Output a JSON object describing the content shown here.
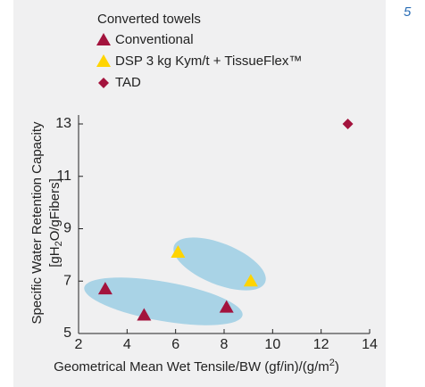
{
  "chart_data": {
    "type": "scatter",
    "figure_number": "5",
    "legend_title": "Converted towels",
    "ylabel_parts": [
      "Specific Water Retention Capacity",
      "[gH",
      "2",
      "O/gFibers]"
    ],
    "xlabel_parts": [
      "Geometrical Mean Wet Tensile/BW (gf/in)/(g/m",
      "2",
      ")"
    ],
    "series": [
      {
        "name": "Conventional",
        "color": "#a3133d",
        "marker": "triangle",
        "x": [
          3.1,
          4.7,
          8.1
        ],
        "values": [
          6.7,
          5.7,
          6.0
        ]
      },
      {
        "name": "DSP 3 kg Kym/t + TissueFlex™",
        "color": "#ffd400",
        "marker": "triangle",
        "x": [
          6.1,
          9.1
        ],
        "values": [
          8.1,
          7.0
        ]
      },
      {
        "name": "TAD",
        "color": "#a3133d",
        "marker": "diamond",
        "x": [
          13.1
        ],
        "values": [
          13.0
        ]
      }
    ],
    "xlim": [
      2,
      14
    ],
    "xticks": [
      2,
      4,
      6,
      8,
      10,
      12,
      14
    ],
    "ylim": [
      5,
      13
    ],
    "yticks": [
      5,
      7,
      9,
      11,
      13
    ]
  }
}
